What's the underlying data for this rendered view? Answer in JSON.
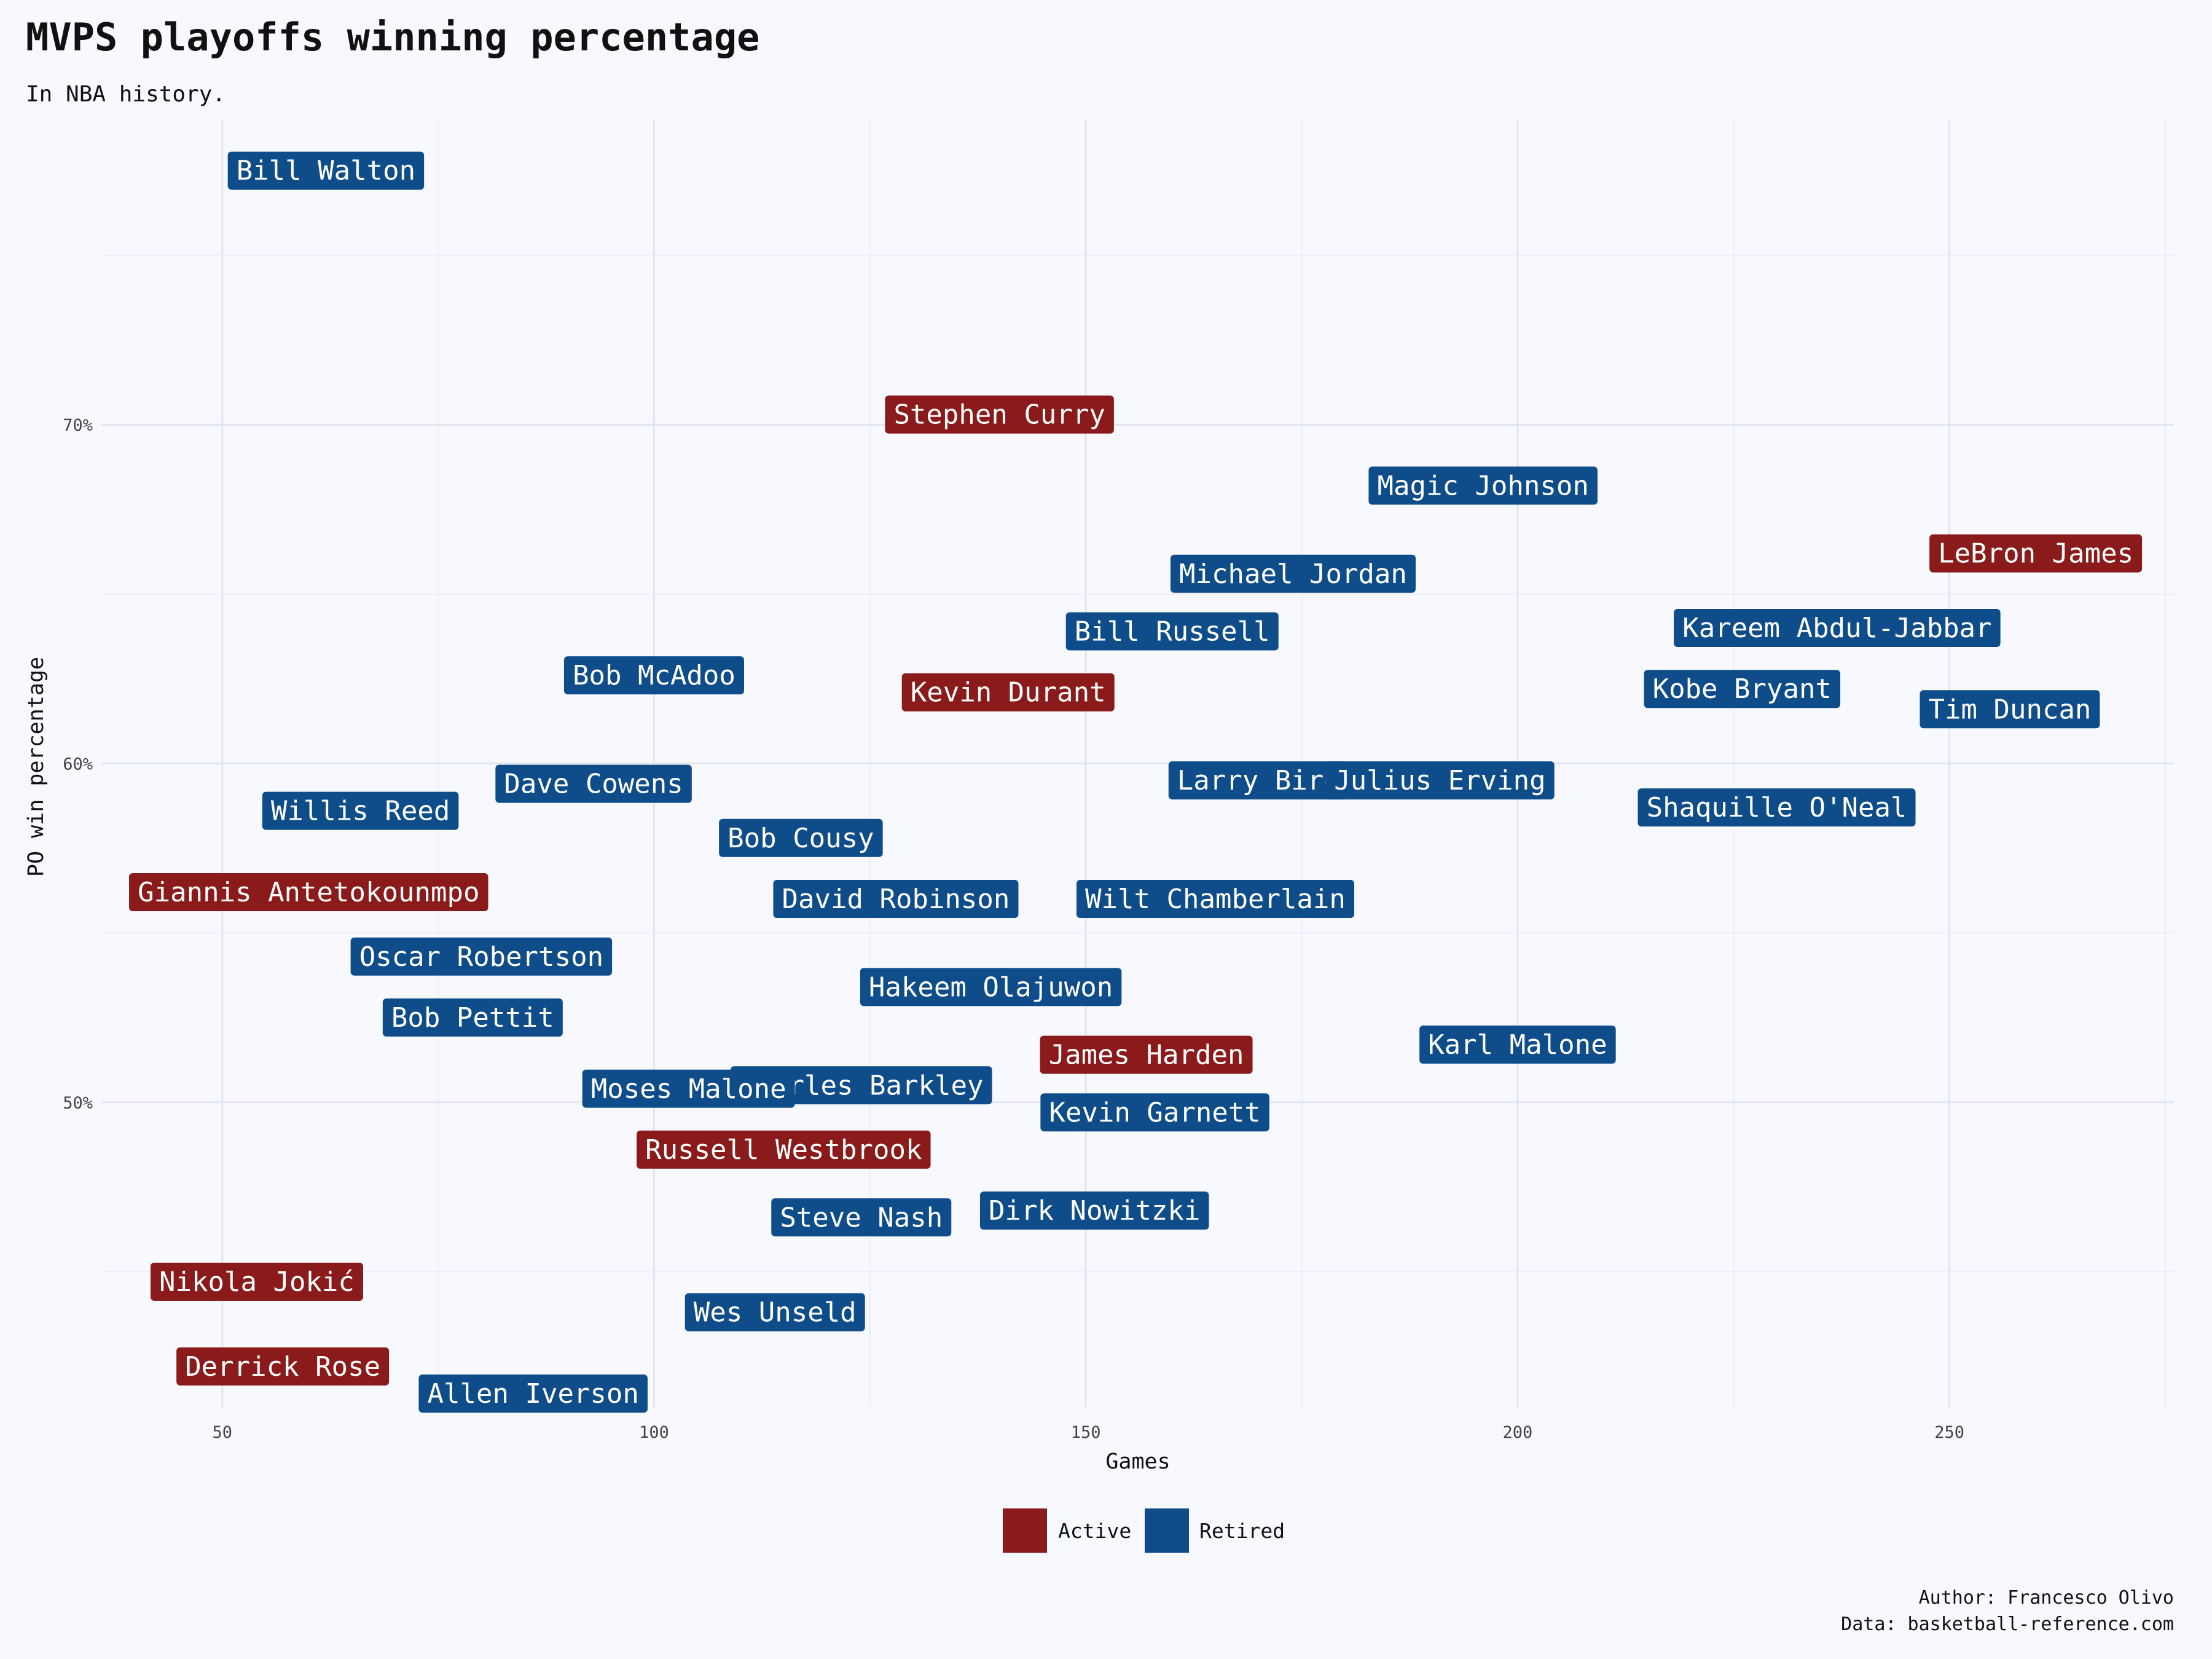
{
  "chart_data": {
    "type": "scatter",
    "title": "MVPS playoffs winning percentage",
    "subtitle": "In NBA history.",
    "xlabel": "Games",
    "ylabel": "PO win percentage",
    "xlim": [
      36,
      276
    ],
    "ylim": [
      41.0,
      79.0
    ],
    "x_ticks": [
      50,
      100,
      150,
      200,
      250
    ],
    "y_ticks": [
      50,
      60,
      70
    ],
    "y_tick_labels": [
      "50%",
      "60%",
      "70%"
    ],
    "grid": true,
    "legend": {
      "placement": "bottom",
      "entries": [
        {
          "label": "Active",
          "color": "#8b1a1a"
        },
        {
          "label": "Retired",
          "color": "#0f4c8a"
        }
      ]
    },
    "caption": [
      "Author: Francesco Olivo",
      "Data: basketball-reference.com"
    ],
    "points": [
      {
        "name": "Bill Walton",
        "x": 62,
        "y": 77.5,
        "status": "Retired"
      },
      {
        "name": "Stephen Curry",
        "x": 140,
        "y": 70.3,
        "status": "Active"
      },
      {
        "name": "Magic Johnson",
        "x": 196,
        "y": 68.2,
        "status": "Retired"
      },
      {
        "name": "LeBron James",
        "x": 260,
        "y": 66.2,
        "status": "Active"
      },
      {
        "name": "Michael Jordan",
        "x": 174,
        "y": 65.6,
        "status": "Retired"
      },
      {
        "name": "Kareem Abdul-Jabbar",
        "x": 237,
        "y": 64.0,
        "status": "Retired"
      },
      {
        "name": "Bill Russell",
        "x": 160,
        "y": 63.9,
        "status": "Retired"
      },
      {
        "name": "Bob McAdoo",
        "x": 100,
        "y": 62.6,
        "status": "Retired"
      },
      {
        "name": "Kevin Durant",
        "x": 141,
        "y": 62.1,
        "status": "Active"
      },
      {
        "name": "Kobe Bryant",
        "x": 226,
        "y": 62.2,
        "status": "Retired"
      },
      {
        "name": "Tim Duncan",
        "x": 257,
        "y": 61.6,
        "status": "Retired"
      },
      {
        "name": "Larry Bird",
        "x": 170,
        "y": 59.5,
        "status": "Retired"
      },
      {
        "name": "Dave Cowens",
        "x": 93,
        "y": 59.4,
        "status": "Retired"
      },
      {
        "name": "Julius Erving",
        "x": 191,
        "y": 59.5,
        "status": "Retired"
      },
      {
        "name": "Shaquille O'Neal",
        "x": 230,
        "y": 58.7,
        "status": "Retired"
      },
      {
        "name": "Willis Reed",
        "x": 66,
        "y": 58.6,
        "status": "Retired"
      },
      {
        "name": "Bob Cousy",
        "x": 117,
        "y": 57.8,
        "status": "Retired"
      },
      {
        "name": "Giannis Antetokounmpo",
        "x": 60,
        "y": 56.2,
        "status": "Active"
      },
      {
        "name": "David Robinson",
        "x": 128,
        "y": 56.0,
        "status": "Retired"
      },
      {
        "name": "Wilt Chamberlain",
        "x": 165,
        "y": 56.0,
        "status": "Retired"
      },
      {
        "name": "Oscar Robertson",
        "x": 80,
        "y": 54.3,
        "status": "Retired"
      },
      {
        "name": "Hakeem Olajuwon",
        "x": 139,
        "y": 53.4,
        "status": "Retired"
      },
      {
        "name": "Bob Pettit",
        "x": 79,
        "y": 52.5,
        "status": "Retired"
      },
      {
        "name": "Charles Barkley",
        "x": 124,
        "y": 50.5,
        "status": "Retired"
      },
      {
        "name": "Karl Malone",
        "x": 200,
        "y": 51.7,
        "status": "Retired"
      },
      {
        "name": "James Harden",
        "x": 157,
        "y": 51.4,
        "status": "Active"
      },
      {
        "name": "Moses Malone",
        "x": 104,
        "y": 50.4,
        "status": "Retired"
      },
      {
        "name": "Kevin Garnett",
        "x": 158,
        "y": 49.7,
        "status": "Retired"
      },
      {
        "name": "Russell Westbrook",
        "x": 115,
        "y": 48.6,
        "status": "Active"
      },
      {
        "name": "Dirk Nowitzki",
        "x": 151,
        "y": 46.8,
        "status": "Retired"
      },
      {
        "name": "Steve Nash",
        "x": 124,
        "y": 46.6,
        "status": "Retired"
      },
      {
        "name": "Nikola Jokić",
        "x": 54,
        "y": 44.7,
        "status": "Active"
      },
      {
        "name": "Wes Unseld",
        "x": 114,
        "y": 43.8,
        "status": "Retired"
      },
      {
        "name": "Derrick Rose",
        "x": 57,
        "y": 42.2,
        "status": "Active"
      },
      {
        "name": "Allen Iverson",
        "x": 86,
        "y": 41.4,
        "status": "Retired"
      }
    ]
  }
}
